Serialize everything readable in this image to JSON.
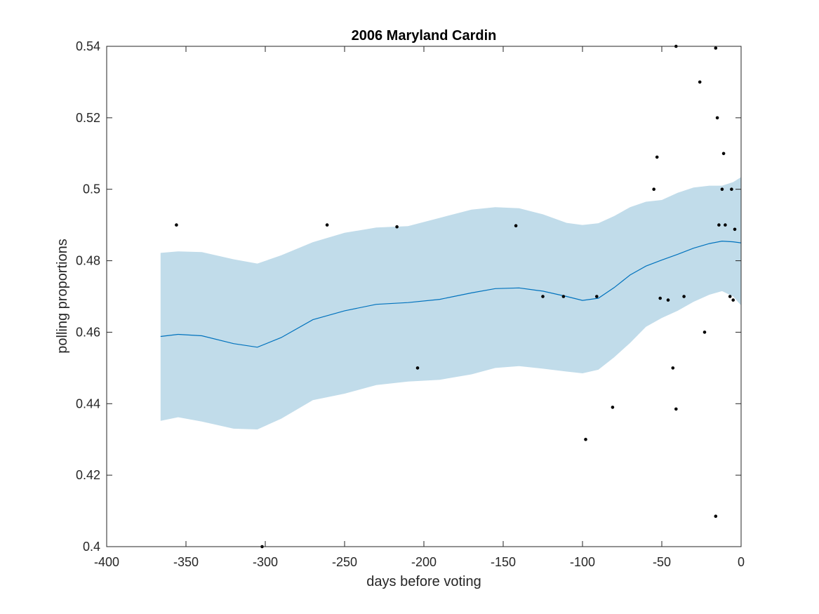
{
  "chart_data": {
    "type": "line",
    "title": "2006 Maryland Cardin",
    "xlabel": "days before voting",
    "ylabel": "polling proportions",
    "xlim": [
      -400,
      0
    ],
    "ylim": [
      0.4,
      0.54
    ],
    "xticks": [
      -400,
      -350,
      -300,
      -250,
      -200,
      -150,
      -100,
      -50,
      0
    ],
    "xtick_labels": [
      "-400",
      "-350",
      "-300",
      "-250",
      "-200",
      "-150",
      "-100",
      "-50",
      "0"
    ],
    "yticks": [
      0.4,
      0.42,
      0.44,
      0.46,
      0.48,
      0.5,
      0.52,
      0.54
    ],
    "ytick_labels": [
      "0.4",
      "0.42",
      "0.44",
      "0.46",
      "0.48",
      "0.5",
      "0.52",
      "0.54"
    ],
    "grid": false,
    "colors": {
      "band": "#c1dcea",
      "line": "#0072bd",
      "points": "#000000",
      "axis": "#262626"
    },
    "series": [
      {
        "kind": "band",
        "x": [
          -366,
          -355,
          -340,
          -320,
          -305,
          -290,
          -270,
          -250,
          -230,
          -210,
          -190,
          -170,
          -155,
          -140,
          -125,
          -110,
          -100,
          -90,
          -80,
          -70,
          -60,
          -50,
          -40,
          -30,
          -20,
          -12,
          -5,
          0
        ],
        "upper": [
          0.4822,
          0.4826,
          0.4824,
          0.4804,
          0.4792,
          0.4815,
          0.4852,
          0.4878,
          0.4893,
          0.4897,
          0.492,
          0.4943,
          0.495,
          0.4947,
          0.493,
          0.4906,
          0.49,
          0.4905,
          0.4925,
          0.495,
          0.4965,
          0.497,
          0.499,
          0.5005,
          0.501,
          0.501,
          0.502,
          0.5034
        ],
        "lower": [
          0.4352,
          0.4362,
          0.435,
          0.433,
          0.4328,
          0.4358,
          0.441,
          0.4428,
          0.4452,
          0.4462,
          0.4467,
          0.4482,
          0.45,
          0.4505,
          0.4498,
          0.449,
          0.4485,
          0.4495,
          0.453,
          0.457,
          0.4615,
          0.464,
          0.466,
          0.4685,
          0.4705,
          0.4715,
          0.47,
          0.4675
        ]
      },
      {
        "kind": "line",
        "x": [
          -366,
          -355,
          -340,
          -320,
          -305,
          -290,
          -270,
          -250,
          -230,
          -210,
          -190,
          -170,
          -155,
          -140,
          -125,
          -110,
          -100,
          -90,
          -80,
          -70,
          -60,
          -50,
          -40,
          -30,
          -20,
          -12,
          -5,
          0
        ],
        "y": [
          0.4588,
          0.4594,
          0.459,
          0.4568,
          0.4558,
          0.4585,
          0.4635,
          0.466,
          0.4678,
          0.4683,
          0.4692,
          0.471,
          0.4722,
          0.4724,
          0.4715,
          0.47,
          0.4689,
          0.4695,
          0.4725,
          0.476,
          0.4785,
          0.4802,
          0.4818,
          0.4835,
          0.4848,
          0.4855,
          0.4853,
          0.485
        ]
      },
      {
        "kind": "scatter",
        "points": [
          [
            -356,
            0.49
          ],
          [
            -302,
            0.4
          ],
          [
            -261,
            0.49
          ],
          [
            -217,
            0.4895
          ],
          [
            -204,
            0.45
          ],
          [
            -142,
            0.4898
          ],
          [
            -125,
            0.47
          ],
          [
            -112,
            0.47
          ],
          [
            -98,
            0.43
          ],
          [
            -91,
            0.47
          ],
          [
            -81,
            0.439
          ],
          [
            -55,
            0.5
          ],
          [
            -53,
            0.509
          ],
          [
            -51,
            0.4695
          ],
          [
            -46,
            0.469
          ],
          [
            -43,
            0.45
          ],
          [
            -41,
            0.54
          ],
          [
            -41,
            0.4385
          ],
          [
            -36,
            0.47
          ],
          [
            -26,
            0.53
          ],
          [
            -23,
            0.46
          ],
          [
            -16,
            0.5395
          ],
          [
            -16,
            0.4085
          ],
          [
            -15,
            0.52
          ],
          [
            -14,
            0.49
          ],
          [
            -12,
            0.5
          ],
          [
            -11,
            0.51
          ],
          [
            -10,
            0.49
          ],
          [
            -7,
            0.47
          ],
          [
            -6,
            0.5
          ],
          [
            -5,
            0.469
          ],
          [
            -4,
            0.4888
          ]
        ]
      }
    ]
  }
}
